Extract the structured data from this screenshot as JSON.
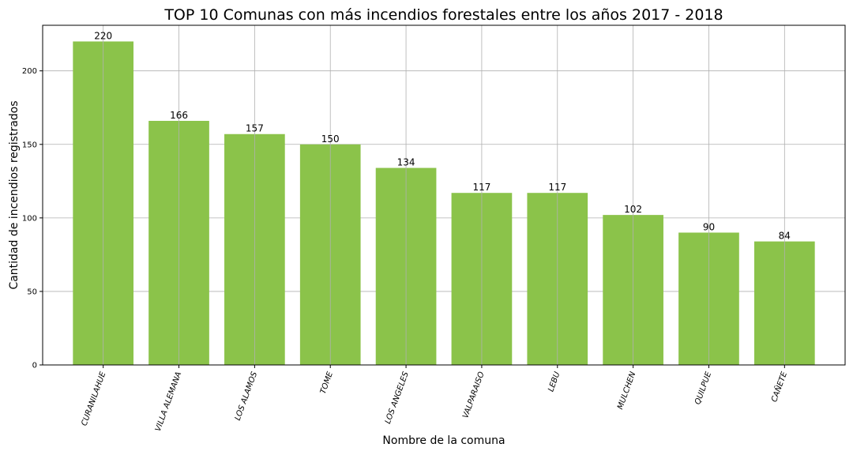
{
  "chart_data": {
    "type": "bar",
    "title": "TOP 10 Comunas con más incendios forestales entre los años 2017 - 2018",
    "xlabel": "Nombre de la comuna",
    "ylabel": "Cantidad de incendios registrados",
    "categories": [
      "CURANILAHUE",
      "VILLA ALEMANA",
      "LOS ALAMOS",
      "TOME",
      "LOS ANGELES",
      "VALPARAISO",
      "LEBU",
      "MULCHEN",
      "QUILPUE",
      "CAÑETE"
    ],
    "values": [
      220,
      166,
      157,
      150,
      134,
      117,
      117,
      102,
      90,
      84
    ],
    "value_labels": [
      "220",
      "166",
      "157",
      "150",
      "134",
      "117",
      "117",
      "102",
      "90",
      "84"
    ],
    "yticks": [
      "0",
      "50",
      "100",
      "150",
      "200"
    ],
    "ytick_values": [
      0,
      50,
      100,
      150,
      200
    ],
    "ylim": [
      0,
      231
    ],
    "grid": true,
    "bar_color": "#8bc34a"
  }
}
